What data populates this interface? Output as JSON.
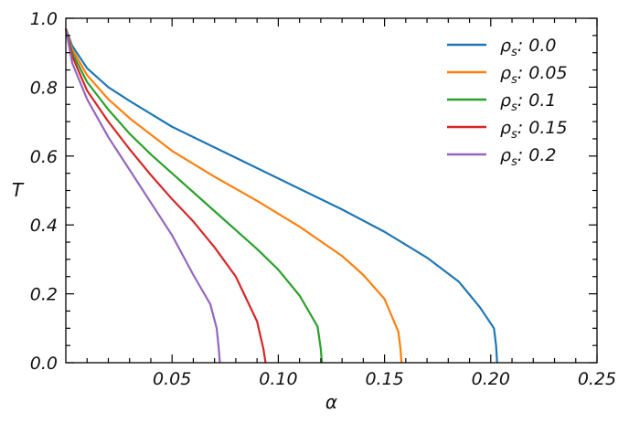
{
  "chart_data": {
    "type": "line",
    "title": "",
    "xlabel": "α",
    "ylabel": "T",
    "xlim": [
      0,
      0.25
    ],
    "ylim": [
      0,
      1.0
    ],
    "xticks": [
      0.05,
      0.1,
      0.15,
      0.2,
      0.25
    ],
    "xtick_labels": [
      "0.05",
      "0.10",
      "0.15",
      "0.20",
      "0.25"
    ],
    "yticks": [
      0.0,
      0.2,
      0.4,
      0.6,
      0.8,
      1.0
    ],
    "ytick_labels": [
      "0.0",
      "0.2",
      "0.4",
      "0.6",
      "0.8",
      "1.0"
    ],
    "grid": false,
    "legend_position": "top-right",
    "legend_symbol": "ρ",
    "legend_subscript": "s",
    "series": [
      {
        "name": ": 0.0",
        "color": "#1f77b4",
        "x": [
          0.0,
          0.003,
          0.01,
          0.02,
          0.03,
          0.05,
          0.07,
          0.09,
          0.11,
          0.13,
          0.15,
          0.17,
          0.185,
          0.195,
          0.2015,
          0.2025,
          0.203
        ],
        "y": [
          0.97,
          0.92,
          0.855,
          0.8,
          0.76,
          0.685,
          0.625,
          0.565,
          0.505,
          0.445,
          0.38,
          0.305,
          0.235,
          0.16,
          0.1,
          0.05,
          0.0
        ]
      },
      {
        "name": ": 0.05",
        "color": "#ff7f0e",
        "x": [
          0.0,
          0.003,
          0.01,
          0.02,
          0.03,
          0.05,
          0.07,
          0.09,
          0.11,
          0.13,
          0.14,
          0.15,
          0.1565,
          0.1575,
          0.158
        ],
        "y": [
          0.97,
          0.91,
          0.835,
          0.765,
          0.71,
          0.615,
          0.54,
          0.47,
          0.395,
          0.31,
          0.255,
          0.185,
          0.09,
          0.04,
          0.0
        ]
      },
      {
        "name": ": 0.1",
        "color": "#2ca02c",
        "x": [
          0.0,
          0.003,
          0.01,
          0.02,
          0.03,
          0.04,
          0.05,
          0.06,
          0.07,
          0.08,
          0.09,
          0.1,
          0.11,
          0.1185,
          0.12,
          0.1205
        ],
        "y": [
          0.97,
          0.9,
          0.815,
          0.735,
          0.665,
          0.605,
          0.55,
          0.495,
          0.44,
          0.385,
          0.33,
          0.27,
          0.195,
          0.105,
          0.04,
          0.0
        ]
      },
      {
        "name": ": 0.15",
        "color": "#d62728",
        "x": [
          0.0,
          0.003,
          0.01,
          0.02,
          0.03,
          0.04,
          0.05,
          0.06,
          0.07,
          0.08,
          0.09,
          0.093,
          0.094
        ],
        "y": [
          0.97,
          0.89,
          0.79,
          0.7,
          0.62,
          0.545,
          0.475,
          0.41,
          0.335,
          0.25,
          0.12,
          0.04,
          0.0
        ]
      },
      {
        "name": ": 0.2",
        "color": "#9467bd",
        "x": [
          0.0,
          0.003,
          0.01,
          0.02,
          0.03,
          0.04,
          0.05,
          0.06,
          0.068,
          0.071,
          0.072,
          0.0725
        ],
        "y": [
          0.97,
          0.87,
          0.765,
          0.655,
          0.56,
          0.465,
          0.37,
          0.255,
          0.17,
          0.1,
          0.04,
          0.0
        ]
      }
    ]
  }
}
